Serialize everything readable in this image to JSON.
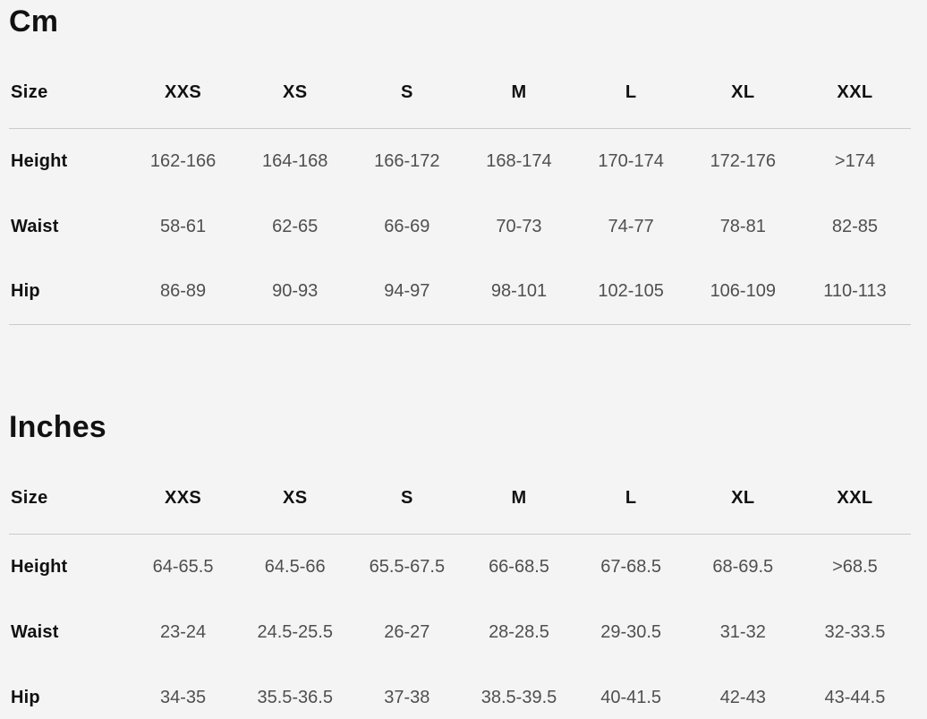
{
  "colors": {
    "background": "#f4f4f4",
    "heading_text": "#111111",
    "data_text": "#4f4f4f",
    "divider": "#cbcbcb"
  },
  "sections": [
    {
      "title": "Cm",
      "size_label": "Size",
      "columns": [
        "XXS",
        "XS",
        "S",
        "M",
        "L",
        "XL",
        "XXL"
      ],
      "rows": [
        {
          "label": "Height",
          "values": [
            "162-166",
            "164-168",
            "166-172",
            "168-174",
            "170-174",
            "172-176",
            ">174"
          ]
        },
        {
          "label": "Waist",
          "values": [
            "58-61",
            "62-65",
            "66-69",
            "70-73",
            "74-77",
            "78-81",
            "82-85"
          ]
        },
        {
          "label": "Hip",
          "values": [
            "86-89",
            "90-93",
            "94-97",
            "98-101",
            "102-105",
            "106-109",
            "110-113"
          ]
        }
      ]
    },
    {
      "title": "Inches",
      "size_label": "Size",
      "columns": [
        "XXS",
        "XS",
        "S",
        "M",
        "L",
        "XL",
        "XXL"
      ],
      "rows": [
        {
          "label": "Height",
          "values": [
            "64-65.5",
            "64.5-66",
            "65.5-67.5",
            "66-68.5",
            "67-68.5",
            "68-69.5",
            ">68.5"
          ]
        },
        {
          "label": "Waist",
          "values": [
            "23-24",
            "24.5-25.5",
            "26-27",
            "28-28.5",
            "29-30.5",
            "31-32",
            "32-33.5"
          ]
        },
        {
          "label": "Hip",
          "values": [
            "34-35",
            "35.5-36.5",
            "37-38",
            "38.5-39.5",
            "40-41.5",
            "42-43",
            "43-44.5"
          ]
        }
      ]
    }
  ]
}
